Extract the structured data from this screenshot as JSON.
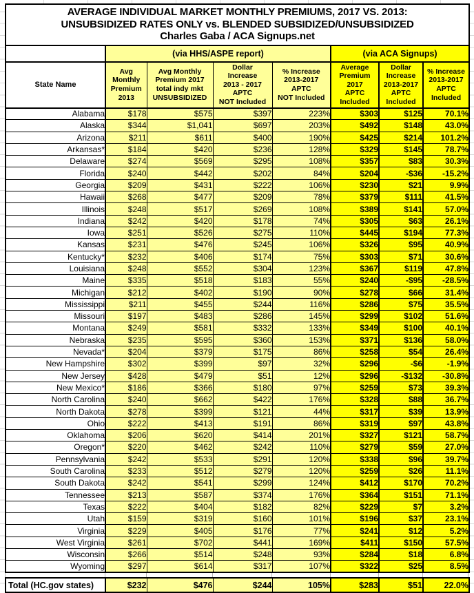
{
  "chart_data": {
    "type": "table",
    "title_lines": [
      "AVERAGE INDIVIDUAL MARKET MONTHLY PREMIUMS, 2017 VS. 2013:",
      "UNSUBSIDIZED RATES ONLY vs. BLENDED SUBSIDIZED/UNSUBSIDIZED",
      "Charles Gaba / ACA Signups.net"
    ],
    "column_groups": [
      {
        "label": "",
        "span": 1
      },
      {
        "label": "(via HHS/ASPE report)",
        "span": 4
      },
      {
        "label": "(via ACA Signups)",
        "span": 3
      }
    ],
    "columns": [
      "State Name",
      "Avg\nMonthly\nPremium\n2013",
      "Avg Monthly\nPremium 2017\ntotal indy mkt\nUNSUBSIDIZED",
      "Dollar\nIncrease\n2013 - 2017\nAPTC\nNOT Included",
      "% Increase\n2013-2017\nAPTC\nNOT Included",
      "Average\nPremium\n2017\nAPTC\nIncluded",
      "Dollar\nIncrease\n2013-2017\nAPTC\nIncluded",
      "% Increase\n2013-2017\nAPTC\nIncluded"
    ],
    "rows": [
      [
        "Alabama",
        "$178",
        "$575",
        "$397",
        "223%",
        "$303",
        "$125",
        "70.1%"
      ],
      [
        "Alaska",
        "$344",
        "$1,041",
        "$697",
        "203%",
        "$492",
        "$148",
        "43.0%"
      ],
      [
        "Arizona",
        "$211",
        "$611",
        "$400",
        "190%",
        "$425",
        "$214",
        "101.2%"
      ],
      [
        "Arkansas*",
        "$184",
        "$420",
        "$236",
        "128%",
        "$329",
        "$145",
        "78.7%"
      ],
      [
        "Delaware",
        "$274",
        "$569",
        "$295",
        "108%",
        "$357",
        "$83",
        "30.3%"
      ],
      [
        "Florida",
        "$240",
        "$442",
        "$202",
        "84%",
        "$204",
        "-$36",
        "-15.2%"
      ],
      [
        "Georgia",
        "$209",
        "$431",
        "$222",
        "106%",
        "$230",
        "$21",
        "9.9%"
      ],
      [
        "Hawaii",
        "$268",
        "$477",
        "$209",
        "78%",
        "$379",
        "$111",
        "41.5%"
      ],
      [
        "Illinois",
        "$248",
        "$517",
        "$269",
        "108%",
        "$389",
        "$141",
        "57.0%"
      ],
      [
        "Indiana",
        "$242",
        "$420",
        "$178",
        "74%",
        "$305",
        "$63",
        "26.1%"
      ],
      [
        "Iowa",
        "$251",
        "$526",
        "$275",
        "110%",
        "$445",
        "$194",
        "77.3%"
      ],
      [
        "Kansas",
        "$231",
        "$476",
        "$245",
        "106%",
        "$326",
        "$95",
        "40.9%"
      ],
      [
        "Kentucky*",
        "$232",
        "$406",
        "$174",
        "75%",
        "$303",
        "$71",
        "30.6%"
      ],
      [
        "Louisiana",
        "$248",
        "$552",
        "$304",
        "123%",
        "$367",
        "$119",
        "47.8%"
      ],
      [
        "Maine",
        "$335",
        "$518",
        "$183",
        "55%",
        "$240",
        "-$95",
        "-28.5%"
      ],
      [
        "Michigan",
        "$212",
        "$402",
        "$190",
        "90%",
        "$278",
        "$66",
        "31.4%"
      ],
      [
        "Mississippi",
        "$211",
        "$455",
        "$244",
        "116%",
        "$286",
        "$75",
        "35.5%"
      ],
      [
        "Missouri",
        "$197",
        "$483",
        "$286",
        "145%",
        "$299",
        "$102",
        "51.6%"
      ],
      [
        "Montana",
        "$249",
        "$581",
        "$332",
        "133%",
        "$349",
        "$100",
        "40.1%"
      ],
      [
        "Nebraska",
        "$235",
        "$595",
        "$360",
        "153%",
        "$371",
        "$136",
        "58.0%"
      ],
      [
        "Nevada*",
        "$204",
        "$379",
        "$175",
        "86%",
        "$258",
        "$54",
        "26.4%"
      ],
      [
        "New Hampshire",
        "$302",
        "$399",
        "$97",
        "32%",
        "$296",
        "-$6",
        "-1.9%"
      ],
      [
        "New Jersey",
        "$428",
        "$479",
        "$51",
        "12%",
        "$296",
        "-$132",
        "-30.8%"
      ],
      [
        "New Mexico*",
        "$186",
        "$366",
        "$180",
        "97%",
        "$259",
        "$73",
        "39.3%"
      ],
      [
        "North Carolina",
        "$240",
        "$662",
        "$422",
        "176%",
        "$328",
        "$88",
        "36.7%"
      ],
      [
        "North Dakota",
        "$278",
        "$399",
        "$121",
        "44%",
        "$317",
        "$39",
        "13.9%"
      ],
      [
        "Ohio",
        "$222",
        "$413",
        "$191",
        "86%",
        "$319",
        "$97",
        "43.8%"
      ],
      [
        "Oklahoma",
        "$206",
        "$620",
        "$414",
        "201%",
        "$327",
        "$121",
        "58.7%"
      ],
      [
        "Oregon*",
        "$220",
        "$462",
        "$242",
        "110%",
        "$279",
        "$59",
        "27.0%"
      ],
      [
        "Pennsylvania",
        "$242",
        "$533",
        "$291",
        "120%",
        "$338",
        "$96",
        "39.7%"
      ],
      [
        "South Carolina",
        "$233",
        "$512",
        "$279",
        "120%",
        "$259",
        "$26",
        "11.1%"
      ],
      [
        "South Dakota",
        "$242",
        "$541",
        "$299",
        "124%",
        "$412",
        "$170",
        "70.2%"
      ],
      [
        "Tennessee",
        "$213",
        "$587",
        "$374",
        "176%",
        "$364",
        "$151",
        "71.1%"
      ],
      [
        "Texas",
        "$222",
        "$404",
        "$182",
        "82%",
        "$229",
        "$7",
        "3.2%"
      ],
      [
        "Utah",
        "$159",
        "$319",
        "$160",
        "101%",
        "$196",
        "$37",
        "23.1%"
      ],
      [
        "Virginia",
        "$229",
        "$405",
        "$176",
        "77%",
        "$241",
        "$12",
        "5.2%"
      ],
      [
        "West Virginia",
        "$261",
        "$702",
        "$441",
        "169%",
        "$411",
        "$150",
        "57.5%"
      ],
      [
        "Wisconsin",
        "$266",
        "$514",
        "$248",
        "93%",
        "$284",
        "$18",
        "6.8%"
      ],
      [
        "Wyoming",
        "$297",
        "$614",
        "$317",
        "107%",
        "$322",
        "$25",
        "8.5%"
      ]
    ],
    "total_row": [
      "Total (HC.gov states)",
      "$232",
      "$476",
      "$244",
      "105%",
      "$283",
      "$51",
      "22.0%"
    ],
    "layout_hints": {
      "colors": {
        "hhs_group_fill": "#FFFF99",
        "aca_group_fill": "#FFFF00",
        "border": "#000000",
        "gridline": "#D9D9D9"
      },
      "aca_group_bold": true,
      "grid": true
    }
  }
}
